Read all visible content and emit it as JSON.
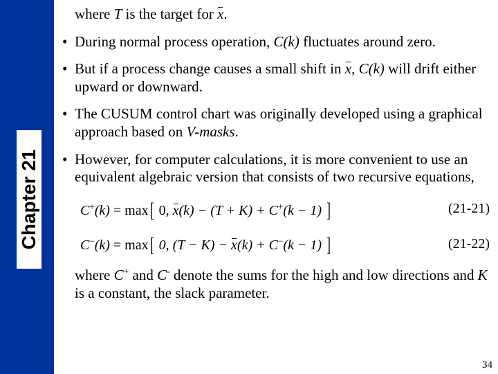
{
  "sidebar": {
    "chapter_label": "Chapter 21"
  },
  "lines": {
    "pre": "where ",
    "target_T": "T",
    "pre2": " is the target for ",
    "xbar": "x",
    "pre3": "."
  },
  "bullets": {
    "b1a": "During normal process operation, ",
    "b1_ck": "C(k)",
    "b1b": " fluctuates around zero.",
    "b2a": "But if a process change causes a small shift in ",
    "b2_xbar": "x",
    "b2b": ", ",
    "b2_ck": "C(k)",
    "b2c": " will drift either upward or downward.",
    "b3a": "The CUSUM control chart was originally developed using a graphical approach based on ",
    "b3_v": "V-masks",
    "b3b": ".",
    "b4": "However, for computer calculations, it is more convenient to use an equivalent algebraic version that consists of two recursive equations,"
  },
  "eq": {
    "eq1_lhs_C": "C",
    "eq1_sup": "+",
    "eq1_k": "(k)",
    "eq1_eq": " = max",
    "eq1_open": "[",
    "eq1_body_a": " 0, ",
    "eq1_x": "x",
    "eq1_body_b": "(k) − (T + K) + ",
    "eq1_body_c": "(k − 1) ",
    "eq1_close": "]",
    "eq1_label": "(21-21)",
    "eq2_sup": "−",
    "eq2_body_b": "(k) + ",
    "eq2_body_mid": " 0, (T − K) − ",
    "eq2_label": "(21-22)"
  },
  "closing": {
    "a": "where ",
    "cplus_c": "C",
    "cplus_p": "+",
    "mid1": " and ",
    "cminus_c": "C",
    "cminus_m": "-",
    "b": " denote the sums for the high and low directions and ",
    "K": "K",
    "c": " is a constant, the slack parameter."
  },
  "page_number": "34",
  "colors": {
    "sidebar": "#003399",
    "text": "#000000",
    "bg": "#ffffff"
  }
}
